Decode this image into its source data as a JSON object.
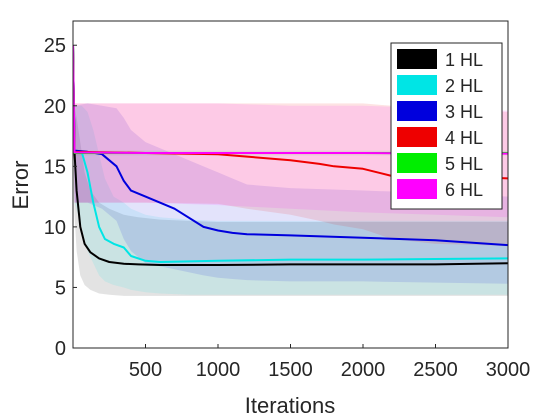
{
  "chart_data": {
    "type": "line",
    "title": "",
    "xlabel": "Iterations",
    "ylabel": "Error",
    "xlim": [
      0,
      3000
    ],
    "ylim": [
      0,
      27
    ],
    "xticks": [
      500,
      1000,
      1500,
      2000,
      2500,
      3000
    ],
    "yticks": [
      0,
      5,
      10,
      15,
      20,
      25
    ],
    "grid": false,
    "legend_position": "top-right",
    "shaded_bands": true,
    "series": [
      {
        "name": "1 HL",
        "color": "#000000",
        "x": [
          0,
          10,
          25,
          50,
          80,
          120,
          180,
          250,
          350,
          450,
          600,
          800,
          1000,
          1500,
          2000,
          2500,
          3000
        ],
        "values": [
          25,
          16.2,
          13.0,
          10.0,
          8.6,
          7.9,
          7.4,
          7.1,
          6.95,
          6.9,
          6.85,
          6.85,
          6.85,
          6.9,
          6.9,
          6.9,
          7.0
        ],
        "band_upper": [
          26,
          20,
          19.0,
          17.0,
          14.5,
          13.0,
          12.0,
          11.5,
          11.0,
          10.8,
          10.6,
          10.5,
          10.4,
          10.4,
          10.4,
          10.4,
          10.4
        ],
        "band_lower": [
          24,
          11.0,
          8.0,
          6.0,
          5.2,
          4.8,
          4.5,
          4.4,
          4.3,
          4.3,
          4.3,
          4.3,
          4.3,
          4.3,
          4.3,
          4.3,
          4.3
        ]
      },
      {
        "name": "2 HL",
        "color": "#00e5e5",
        "x": [
          0,
          10,
          60,
          100,
          140,
          180,
          220,
          280,
          350,
          400,
          500,
          600,
          800,
          1000,
          1500,
          2000,
          2500,
          3000
        ],
        "values": [
          25,
          16.3,
          16.2,
          14.5,
          12.0,
          10.0,
          9.0,
          8.6,
          8.3,
          7.6,
          7.2,
          7.1,
          7.15,
          7.2,
          7.3,
          7.3,
          7.35,
          7.4
        ],
        "band_upper": [
          26,
          20,
          20.0,
          19.5,
          18.0,
          16.0,
          14.0,
          12.5,
          12.0,
          11.5,
          11.0,
          10.8,
          10.6,
          10.5,
          10.5,
          10.5,
          10.5,
          10.5
        ],
        "band_lower": [
          24,
          12,
          10.0,
          8.0,
          7.0,
          6.0,
          5.5,
          5.2,
          5.0,
          4.8,
          4.6,
          4.5,
          4.4,
          4.4,
          4.4,
          4.4,
          4.4,
          4.4
        ]
      },
      {
        "name": "3 HL",
        "color": "#0000dd",
        "x": [
          0,
          10,
          100,
          200,
          300,
          350,
          400,
          500,
          700,
          900,
          1000,
          1100,
          1200,
          1500,
          2000,
          2500,
          3000
        ],
        "values": [
          25,
          16.3,
          16.2,
          16.0,
          15.0,
          13.8,
          13.0,
          12.5,
          11.5,
          10.0,
          9.7,
          9.5,
          9.4,
          9.3,
          9.1,
          8.9,
          8.5
        ],
        "band_upper": [
          26,
          20,
          20.2,
          20.0,
          19.8,
          19.0,
          18.0,
          17.0,
          16.0,
          15.0,
          14.5,
          14.0,
          13.5,
          13.2,
          13.0,
          12.8,
          12.5
        ],
        "band_lower": [
          24,
          12,
          12.0,
          11.5,
          10.5,
          9.0,
          8.0,
          7.0,
          6.5,
          6.0,
          5.8,
          5.7,
          5.6,
          5.5,
          5.5,
          5.4,
          5.3
        ]
      },
      {
        "name": "4 HL",
        "color": "#ee0000",
        "x": [
          0,
          10,
          500,
          1000,
          1200,
          1500,
          1700,
          1800,
          2000,
          2200,
          2500,
          2800,
          3000
        ],
        "values": [
          25,
          16.2,
          16.1,
          16.0,
          15.8,
          15.5,
          15.2,
          15.0,
          14.8,
          14.2,
          14.1,
          14.1,
          14.0
        ],
        "band_upper": [
          26,
          20.2,
          20.2,
          20.2,
          20.2,
          20.2,
          20.2,
          20.2,
          20.2,
          20.0,
          19.8,
          19.6,
          19.5
        ],
        "band_lower": [
          24,
          12.0,
          12.0,
          11.9,
          11.5,
          11.0,
          10.5,
          10.2,
          9.8,
          9.0,
          8.6,
          8.5,
          8.4
        ]
      },
      {
        "name": "5 HL",
        "color": "#00ee00",
        "x": [
          0,
          10,
          3000
        ],
        "values": [
          25,
          16.1,
          16.1
        ],
        "band_upper": [
          26,
          16.3,
          16.3
        ],
        "band_lower": [
          24,
          15.9,
          15.9
        ]
      },
      {
        "name": "6 HL",
        "color": "#ff00ff",
        "x": [
          0,
          10,
          500,
          1000,
          1500,
          2000,
          2500,
          3000
        ],
        "values": [
          25,
          16.15,
          16.1,
          16.1,
          16.1,
          16.1,
          16.05,
          16.05
        ],
        "band_upper": [
          26,
          20.2,
          20.2,
          20.2,
          20.0,
          20.0,
          19.8,
          19.6
        ],
        "band_lower": [
          24,
          12.0,
          12.0,
          11.8,
          11.5,
          11.2,
          11.0,
          10.8
        ]
      }
    ]
  }
}
